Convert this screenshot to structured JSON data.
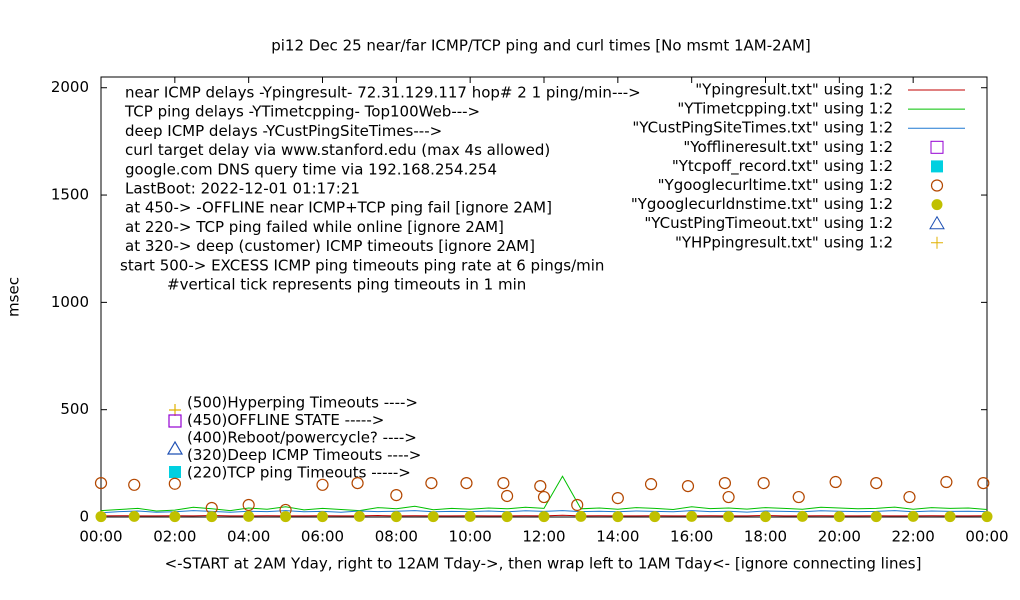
{
  "chart_data": {
    "type": "line",
    "title": "pi12 Dec 25  near/far ICMP/TCP ping and curl times [No msmt 1AM-2AM]",
    "ylabel": "msec",
    "xlabel": "<-START at 2AM Yday, right to 12AM Tday->, then wrap left to 1AM Tday<- [ignore connecting lines]",
    "xlim": [
      0,
      24
    ],
    "ylim": [
      0,
      2050
    ],
    "xticks": [
      {
        "value": 0,
        "label": "00:00"
      },
      {
        "value": 2,
        "label": "02:00"
      },
      {
        "value": 4,
        "label": "04:00"
      },
      {
        "value": 6,
        "label": "06:00"
      },
      {
        "value": 8,
        "label": "08:00"
      },
      {
        "value": 10,
        "label": "10:00"
      },
      {
        "value": 12,
        "label": "12:00"
      },
      {
        "value": 14,
        "label": "14:00"
      },
      {
        "value": 16,
        "label": "16:00"
      },
      {
        "value": 18,
        "label": "18:00"
      },
      {
        "value": 20,
        "label": "20:00"
      },
      {
        "value": 22,
        "label": "22:00"
      },
      {
        "value": 24,
        "label": "00:00"
      }
    ],
    "yticks": [
      0,
      500,
      1000,
      1500,
      2000
    ],
    "annotations": [
      "near ICMP delays -Ypingresult- 72.31.129.117 hop# 2  1 ping/min--->",
      "TCP ping delays -YTimetcpping- Top100Web--->",
      "deep ICMP delays -YCustPingSiteTimes--->",
      "curl target delay via www.stanford.edu (max 4s allowed)",
      "google.com DNS query time via 192.168.254.254",
      "LastBoot: 2022-12-01 01:17:21",
      "at 450-> -OFFLINE near ICMP+TCP ping fail [ignore 2AM]",
      "at 220-> TCP ping failed while online [ignore 2AM]",
      "at 320-> deep (customer) ICMP timeouts [ignore 2AM]",
      "start 500-> EXCESS ICMP ping timeouts ping rate at 6 pings/min",
      "#vertical tick represents ping timeouts in 1 min"
    ],
    "marker_notes": [
      "(500)Hyperping Timeouts ---->",
      "(450)OFFLINE STATE ----->",
      "(400)Reboot/powercycle? ---->",
      "(320)Deep ICMP Timeouts ---->",
      "(220)TCP ping Timeouts ----->"
    ],
    "series": [
      {
        "name": "\"Ypingresult.txt\" using 1:2",
        "color": "#c00000",
        "style": "line",
        "x": [
          0,
          0.5,
          1,
          1.5,
          2,
          2.5,
          3,
          3.5,
          4,
          4.5,
          5,
          5.5,
          6,
          6.5,
          7,
          7.5,
          8,
          8.5,
          9,
          9.5,
          10,
          10.5,
          11,
          11.5,
          12,
          12.5,
          13,
          13.5,
          14,
          14.5,
          15,
          15.5,
          16,
          16.5,
          17,
          17.5,
          18,
          18.5,
          19,
          19.5,
          20,
          20.5,
          21,
          21.5,
          22,
          22.5,
          23,
          23.5,
          24
        ],
        "values": [
          5,
          6,
          5,
          5,
          6,
          5,
          7,
          5,
          5,
          6,
          5,
          5,
          6,
          5,
          5,
          7,
          5,
          6,
          5,
          5,
          6,
          5,
          5,
          6,
          5,
          8,
          5,
          6,
          5,
          5,
          6,
          5,
          5,
          6,
          5,
          5,
          7,
          5,
          5,
          6,
          5,
          5,
          6,
          5,
          5,
          6,
          5,
          5,
          6
        ]
      },
      {
        "name": "\"YTimetcpping.txt\" using 1:2",
        "color": "#00c000",
        "style": "line",
        "x": [
          0,
          0.5,
          1,
          1.5,
          2,
          2.5,
          3,
          3.5,
          4,
          4.5,
          5,
          5.5,
          6,
          6.5,
          7,
          7.5,
          8,
          8.5,
          9,
          9.5,
          10,
          10.5,
          11,
          11.5,
          12,
          12.5,
          13,
          13.5,
          14,
          14.5,
          15,
          15.5,
          16,
          16.5,
          17,
          17.5,
          18,
          18.5,
          19,
          19.5,
          20,
          20.5,
          21,
          21.5,
          22,
          22.5,
          23,
          23.5,
          24
        ],
        "values": [
          30,
          35,
          40,
          28,
          32,
          45,
          38,
          30,
          42,
          36,
          48,
          33,
          40,
          35,
          30,
          44,
          38,
          50,
          34,
          40,
          36,
          42,
          38,
          45,
          40,
          190,
          38,
          42,
          36,
          44,
          40,
          35,
          48,
          39,
          42,
          37,
          44,
          40,
          36,
          45,
          42,
          38,
          40,
          46,
          36,
          44,
          40,
          42,
          35
        ]
      },
      {
        "name": "\"YCustPingSiteTimes.txt\" using 1:2",
        "color": "#1e78d2",
        "style": "line",
        "x": [
          0,
          0.5,
          1,
          1.5,
          2,
          2.5,
          3,
          3.5,
          4,
          4.5,
          5,
          5.5,
          6,
          6.5,
          7,
          7.5,
          8,
          8.5,
          9,
          9.5,
          10,
          10.5,
          11,
          11.5,
          12,
          12.5,
          13,
          13.5,
          14,
          14.5,
          15,
          15.5,
          16,
          16.5,
          17,
          17.5,
          18,
          18.5,
          19,
          19.5,
          20,
          20.5,
          21,
          21.5,
          22,
          22.5,
          23,
          23.5,
          24
        ],
        "values": [
          20,
          25,
          28,
          22,
          24,
          30,
          26,
          22,
          27,
          25,
          30,
          24,
          26,
          22,
          28,
          25,
          27,
          30,
          24,
          26,
          25,
          28,
          24,
          29,
          26,
          30,
          25,
          27,
          24,
          28,
          26,
          24,
          30,
          25,
          27,
          23,
          28,
          26,
          24,
          29,
          27,
          25,
          26,
          30,
          24,
          28,
          26,
          27,
          25
        ]
      },
      {
        "name": "\"Yofflineresult.txt\" using 1:2",
        "color": "#9400d3",
        "style": "open-square",
        "x": [],
        "values": []
      },
      {
        "name": "\"Ytcpoff_record.txt\" using 1:2",
        "color": "#00d0e0",
        "style": "filled-square",
        "x": [],
        "values": []
      },
      {
        "name": "\"Ygooglecurltime.txt\" using 1:2",
        "color": "#b34700",
        "style": "open-circle",
        "x": [
          0,
          0.9,
          2,
          3,
          4,
          5,
          6,
          6.95,
          8,
          8.95,
          9.9,
          10.9,
          11,
          11.9,
          12,
          12.9,
          14,
          14.9,
          15.9,
          16.9,
          17,
          17.95,
          18.9,
          19.9,
          21,
          21.9,
          22.9,
          23.9
        ],
        "values": [
          158,
          150,
          155,
          42,
          56,
          33,
          150,
          158,
          102,
          158,
          158,
          158,
          98,
          144,
          93,
          56,
          88,
          153,
          144,
          158,
          93,
          158,
          93,
          163,
          158,
          93,
          163,
          158
        ]
      },
      {
        "name": "\"Ygooglecurldnstime.txt\" using 1:2",
        "color": "#c0c000",
        "style": "filled-circle",
        "x": [
          0,
          0.9,
          2,
          3,
          4,
          5,
          6,
          7,
          8,
          9,
          10,
          11,
          12,
          13,
          14,
          15,
          16,
          17,
          18,
          19,
          20,
          21,
          22,
          23,
          24
        ],
        "values": [
          2,
          3,
          2,
          2,
          3,
          2,
          2,
          3,
          2,
          2,
          3,
          2,
          2,
          3,
          2,
          2,
          3,
          2,
          2,
          3,
          2,
          2,
          3,
          2,
          2
        ]
      },
      {
        "name": "\"YCustPingTimeout.txt\" using 1:2",
        "color": "#1e50b4",
        "style": "open-triangle",
        "x": [],
        "values": []
      },
      {
        "name": "\"YHPpingresult.txt\" using 1:2",
        "color": "#e0b000",
        "style": "plus",
        "x": [],
        "values": []
      }
    ]
  }
}
